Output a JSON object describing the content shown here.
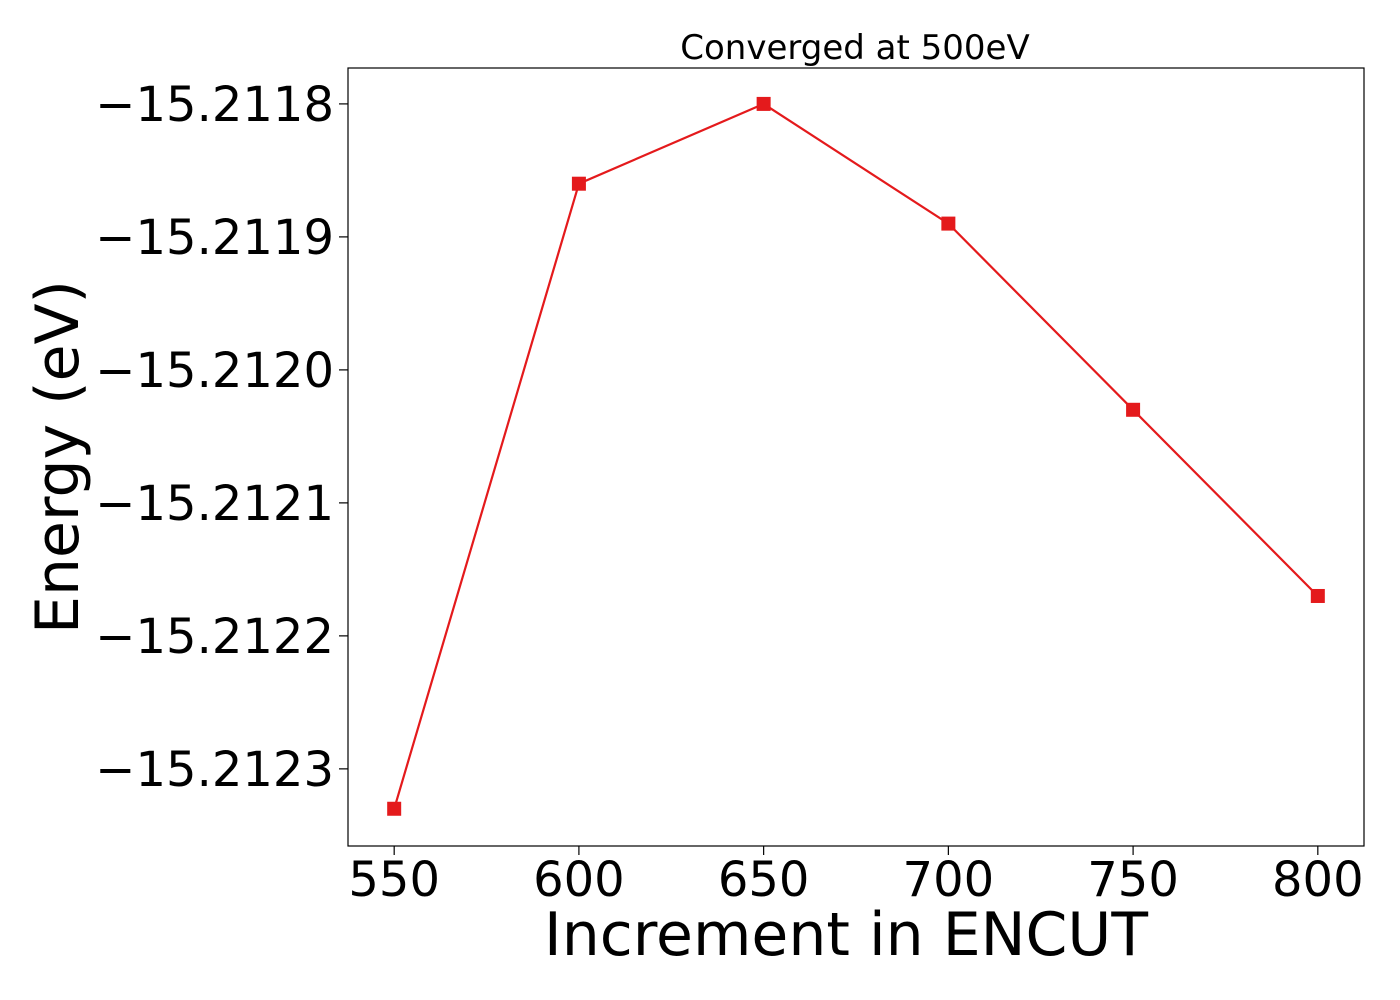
{
  "chart_data": {
    "type": "line",
    "title": "Converged at 500eV",
    "xlabel": "Increment in ENCUT",
    "ylabel": "Energy (eV)",
    "x": [
      550,
      600,
      650,
      700,
      750,
      800
    ],
    "series": [
      {
        "values": [
          -15.21233,
          -15.21186,
          -15.2118,
          -15.21189,
          -15.21203,
          -15.21217
        ],
        "color": "#e41a1c",
        "marker": "square"
      }
    ],
    "xticks": [
      550,
      600,
      650,
      700,
      750,
      800
    ],
    "xtick_labels": [
      "550",
      "600",
      "650",
      "700",
      "750",
      "800"
    ],
    "yticks": [
      -15.2118,
      -15.2119,
      -15.212,
      -15.2121,
      -15.2122,
      -15.2123
    ],
    "ytick_labels": [
      "−15.2118",
      "−15.2119",
      "−15.2120",
      "−15.2121",
      "−15.2122",
      "−15.2123"
    ],
    "xlim": [
      537.5,
      812.5
    ],
    "ylim": [
      -15.212358,
      -15.211773
    ],
    "grid": false,
    "legend": false
  }
}
